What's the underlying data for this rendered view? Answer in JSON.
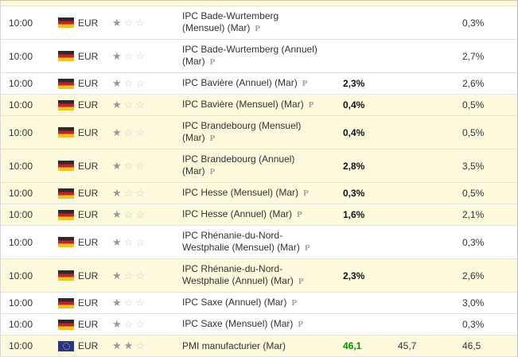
{
  "preliminary_label": "P",
  "colors": {
    "row_highlight": "#fcf9dc",
    "row_plain": "#ffffff",
    "row_border": "#e2e2e2",
    "actual_better_green": "#059105",
    "actual_neutral_dark": "#111111",
    "star_filled": "#989898",
    "star_empty": "#cccccc"
  },
  "rows": [
    {
      "time": "10:00",
      "currency": "EUR",
      "flag": "germany",
      "importance": 1,
      "event": "IPC Bade-Wurtemberg (Mensuel) (Mar)",
      "preliminary": true,
      "actual": "",
      "actual_color": "",
      "forecast": "",
      "previous": "0,3%",
      "background": "white"
    },
    {
      "time": "10:00",
      "currency": "EUR",
      "flag": "germany",
      "importance": 1,
      "event": "IPC Bade-Wurtemberg (Annuel) (Mar)",
      "preliminary": true,
      "actual": "",
      "actual_color": "",
      "forecast": "",
      "previous": "2,7%",
      "background": "white"
    },
    {
      "time": "10:00",
      "currency": "EUR",
      "flag": "germany",
      "importance": 1,
      "event": "IPC Bavière (Annuel) (Mar)",
      "preliminary": true,
      "actual": "2,3%",
      "actual_color": "dark",
      "forecast": "",
      "previous": "2,6%",
      "background": "white"
    },
    {
      "time": "10:00",
      "currency": "EUR",
      "flag": "germany",
      "importance": 1,
      "event": "IPC Bavière (Mensuel) (Mar)",
      "preliminary": true,
      "actual": "0,4%",
      "actual_color": "dark",
      "forecast": "",
      "previous": "0,5%",
      "background": "yellow"
    },
    {
      "time": "10:00",
      "currency": "EUR",
      "flag": "germany",
      "importance": 1,
      "event": "IPC Brandebourg (Mensuel) (Mar)",
      "preliminary": true,
      "actual": "0,4%",
      "actual_color": "dark",
      "forecast": "",
      "previous": "0,5%",
      "background": "yellow"
    },
    {
      "time": "10:00",
      "currency": "EUR",
      "flag": "germany",
      "importance": 1,
      "event": "IPC Brandebourg (Annuel) (Mar)",
      "preliminary": true,
      "actual": "2,8%",
      "actual_color": "dark",
      "forecast": "",
      "previous": "3,5%",
      "background": "yellow"
    },
    {
      "time": "10:00",
      "currency": "EUR",
      "flag": "germany",
      "importance": 1,
      "event": "IPC Hesse (Mensuel) (Mar)",
      "preliminary": true,
      "actual": "0,3%",
      "actual_color": "dark",
      "forecast": "",
      "previous": "0,5%",
      "background": "yellow"
    },
    {
      "time": "10:00",
      "currency": "EUR",
      "flag": "germany",
      "importance": 1,
      "event": "IPC Hesse (Annuel) (Mar)",
      "preliminary": true,
      "actual": "1,6%",
      "actual_color": "dark",
      "forecast": "",
      "previous": "2,1%",
      "background": "yellow"
    },
    {
      "time": "10:00",
      "currency": "EUR",
      "flag": "germany",
      "importance": 1,
      "event": "IPC Rhénanie-du-Nord-Westphalie (Mensuel) (Mar)",
      "preliminary": true,
      "actual": "",
      "actual_color": "",
      "forecast": "",
      "previous": "0,3%",
      "background": "white"
    },
    {
      "time": "10:00",
      "currency": "EUR",
      "flag": "germany",
      "importance": 1,
      "event": "IPC Rhénanie-du-Nord-Westphalie (Annuel) (Mar)",
      "preliminary": true,
      "actual": "2,3%",
      "actual_color": "dark",
      "forecast": "",
      "previous": "2,6%",
      "background": "yellow"
    },
    {
      "time": "10:00",
      "currency": "EUR",
      "flag": "germany",
      "importance": 1,
      "event": "IPC Saxe (Annuel) (Mar)",
      "preliminary": true,
      "actual": "",
      "actual_color": "",
      "forecast": "",
      "previous": "3,0%",
      "background": "white"
    },
    {
      "time": "10:00",
      "currency": "EUR",
      "flag": "germany",
      "importance": 1,
      "event": "IPC Saxe (Mensuel) (Mar)",
      "preliminary": true,
      "actual": "",
      "actual_color": "",
      "forecast": "",
      "previous": "0,3%",
      "background": "white"
    },
    {
      "time": "10:00",
      "currency": "EUR",
      "flag": "european_union",
      "importance": 2,
      "event": "PMI manufacturier (Mar)",
      "preliminary": false,
      "actual": "46,1",
      "actual_color": "green",
      "forecast": "45,7",
      "previous": "46,5",
      "background": "yellow"
    }
  ]
}
